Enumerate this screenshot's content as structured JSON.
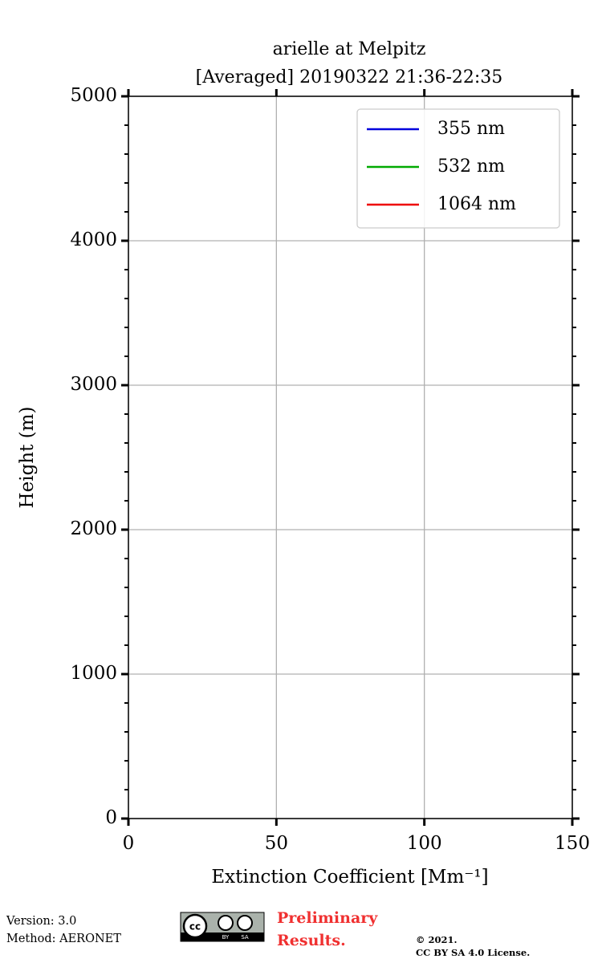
{
  "chart_data": {
    "type": "line",
    "title": "arielle at Melpitz",
    "subtitle": "[Averaged] 20190322 21:36-22:35",
    "xlabel": "Extinction Coefficient [Mm⁻¹]",
    "ylabel": "Height (m)",
    "xlim": [
      0,
      150
    ],
    "xticks": [
      0,
      50,
      100,
      150
    ],
    "ylim": [
      0,
      5000
    ],
    "yticks": [
      0,
      1000,
      2000,
      3000,
      4000,
      5000
    ],
    "yminorticks": [
      200,
      400,
      600,
      800,
      1200,
      1400,
      1600,
      1800,
      2200,
      2400,
      2600,
      2800,
      3200,
      3400,
      3600,
      3800,
      4200,
      4400,
      4600,
      4800
    ],
    "grid": true,
    "legend": "upper right",
    "x": [],
    "series": [
      {
        "name": "355 nm",
        "color": "#0000dd",
        "values": []
      },
      {
        "name": "532 nm",
        "color": "#00aa00",
        "values": []
      },
      {
        "name": "1064 nm",
        "color": "#ee0000",
        "values": []
      }
    ]
  },
  "footer": {
    "version": "Version: 3.0",
    "method": "Method: AERONET",
    "badge": [
      "cc",
      "BY",
      "SA"
    ],
    "preliminary": [
      "Preliminary",
      "Results."
    ],
    "license": [
      "©  2021.",
      "CC BY SA 4.0 License."
    ]
  }
}
